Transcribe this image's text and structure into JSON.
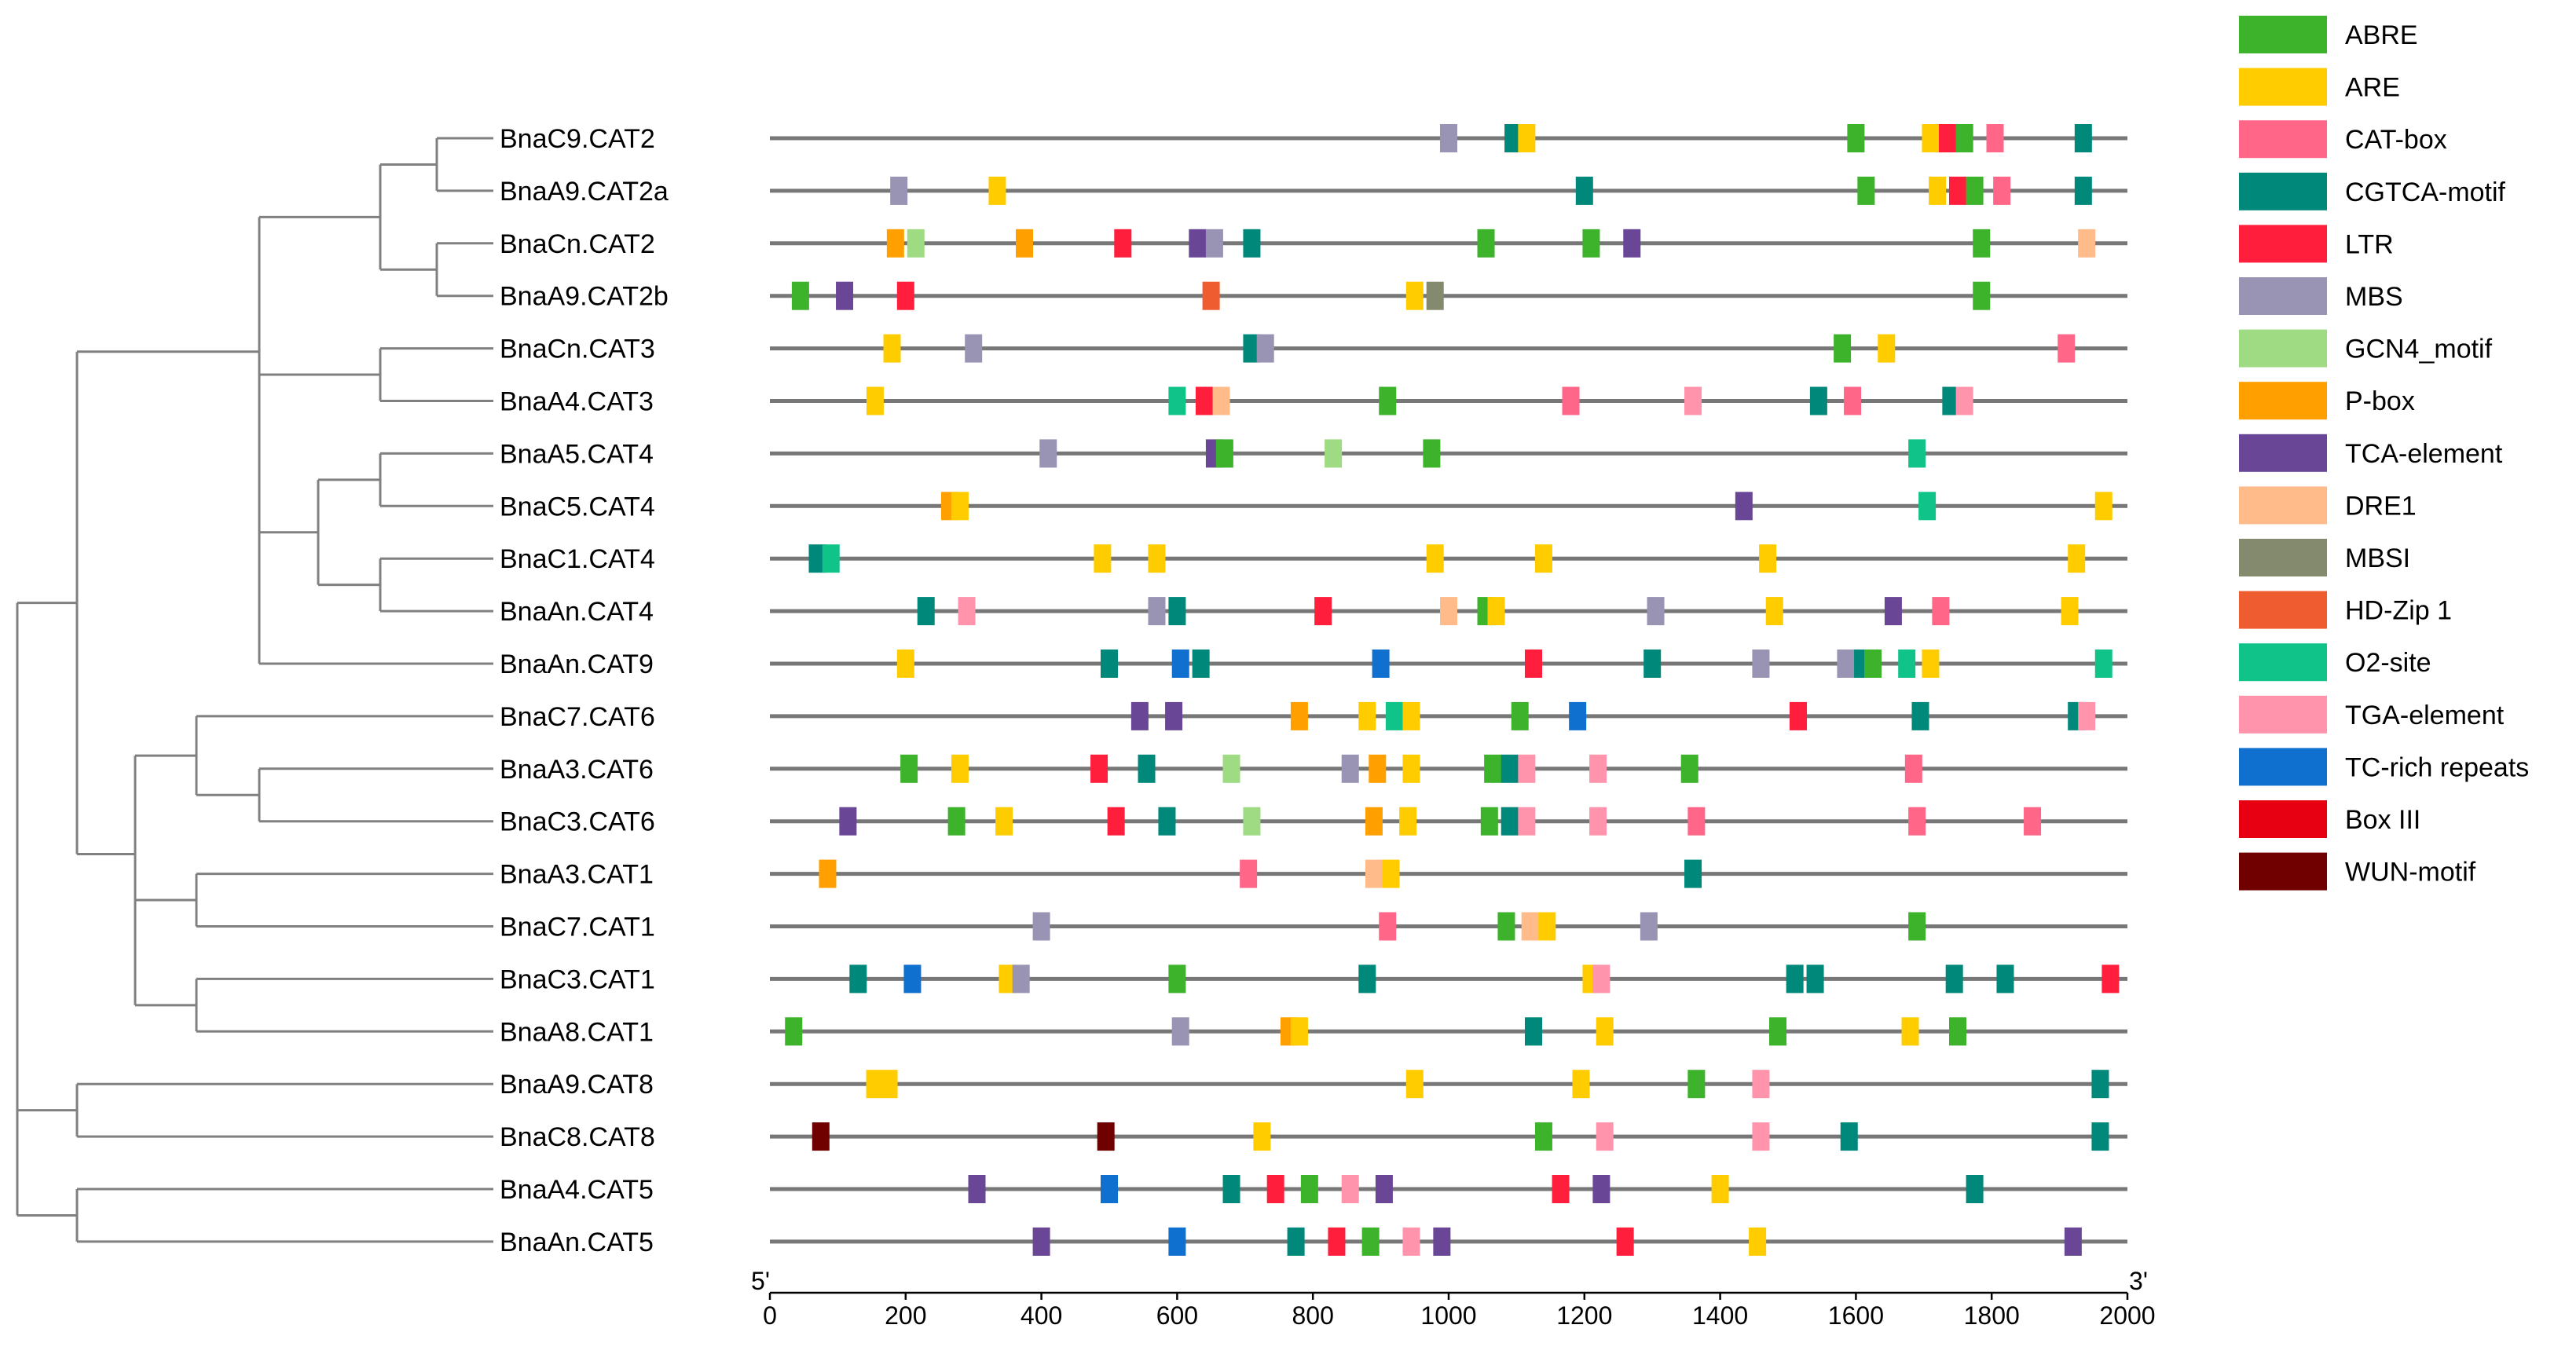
{
  "chart_data": {
    "type": "diagram",
    "description_kind": "promoter cis-element map with phylogenetic tree",
    "axis": {
      "min": 0,
      "max": 2000,
      "ticks": [
        0,
        200,
        400,
        600,
        800,
        1000,
        1200,
        1400,
        1600,
        1800,
        2000
      ],
      "left_end_label": "5'",
      "right_end_label": "3'"
    },
    "legend": [
      {
        "name": "ABRE",
        "color": "#3db22b"
      },
      {
        "name": "ARE",
        "color": "#ffcc00"
      },
      {
        "name": "CAT-box",
        "color": "#ff6688"
      },
      {
        "name": "CGTCA-motif",
        "color": "#00897b"
      },
      {
        "name": "LTR",
        "color": "#ff1f3d"
      },
      {
        "name": "MBS",
        "color": "#9a94b4"
      },
      {
        "name": "GCN4_motif",
        "color": "#9edb82"
      },
      {
        "name": "P-box",
        "color": "#ffa000"
      },
      {
        "name": "TCA-element",
        "color": "#6a4796"
      },
      {
        "name": "DRE1",
        "color": "#ffbb8a"
      },
      {
        "name": "MBSI",
        "color": "#848a6e"
      },
      {
        "name": "HD-Zip 1",
        "color": "#ef5c2f"
      },
      {
        "name": "O2-site",
        "color": "#10c389"
      },
      {
        "name": "TGA-element",
        "color": "#ff94ac"
      },
      {
        "name": "TC-rich repeats",
        "color": "#1070cf"
      },
      {
        "name": "Box III",
        "color": "#e60012"
      },
      {
        "name": "WUN-motif",
        "color": "#700000"
      }
    ],
    "genes": [
      {
        "name": "BnaC9.CAT2",
        "elements": [
          [
            1000,
            "MBS"
          ],
          [
            1095,
            "CGTCA-motif"
          ],
          [
            1115,
            "ARE"
          ],
          [
            1600,
            "ABRE"
          ],
          [
            1710,
            "ARE"
          ],
          [
            1735,
            "LTR"
          ],
          [
            1760,
            "ABRE"
          ],
          [
            1805,
            "CAT-box"
          ],
          [
            1935,
            "CGTCA-motif"
          ]
        ]
      },
      {
        "name": "BnaA9.CAT2a",
        "elements": [
          [
            190,
            "MBS"
          ],
          [
            335,
            "ARE"
          ],
          [
            1200,
            "CGTCA-motif"
          ],
          [
            1615,
            "ABRE"
          ],
          [
            1720,
            "ARE"
          ],
          [
            1750,
            "LTR"
          ],
          [
            1775,
            "ABRE"
          ],
          [
            1815,
            "CAT-box"
          ],
          [
            1935,
            "CGTCA-motif"
          ]
        ]
      },
      {
        "name": "BnaCn.CAT2",
        "elements": [
          [
            185,
            "P-box"
          ],
          [
            215,
            "GCN4_motif"
          ],
          [
            375,
            "P-box"
          ],
          [
            520,
            "LTR"
          ],
          [
            630,
            "TCA-element"
          ],
          [
            655,
            "MBS"
          ],
          [
            710,
            "CGTCA-motif"
          ],
          [
            1055,
            "ABRE"
          ],
          [
            1210,
            "ABRE"
          ],
          [
            1270,
            "TCA-element"
          ],
          [
            1785,
            "ABRE"
          ],
          [
            1940,
            "DRE1"
          ]
        ]
      },
      {
        "name": "BnaA9.CAT2b",
        "elements": [
          [
            45,
            "ABRE"
          ],
          [
            110,
            "TCA-element"
          ],
          [
            200,
            "LTR"
          ],
          [
            650,
            "HD-Zip 1"
          ],
          [
            950,
            "ARE"
          ],
          [
            980,
            "MBSI"
          ],
          [
            1785,
            "ABRE"
          ]
        ]
      },
      {
        "name": "BnaCn.CAT3",
        "elements": [
          [
            180,
            "ARE"
          ],
          [
            300,
            "MBS"
          ],
          [
            710,
            "CGTCA-motif"
          ],
          [
            730,
            "MBS"
          ],
          [
            1580,
            "ABRE"
          ],
          [
            1645,
            "ARE"
          ],
          [
            1910,
            "CAT-box"
          ]
        ]
      },
      {
        "name": "BnaA4.CAT3",
        "elements": [
          [
            155,
            "ARE"
          ],
          [
            600,
            "O2-site"
          ],
          [
            640,
            "LTR"
          ],
          [
            665,
            "DRE1"
          ],
          [
            910,
            "ABRE"
          ],
          [
            1180,
            "CAT-box"
          ],
          [
            1360,
            "TGA-element"
          ],
          [
            1545,
            "CGTCA-motif"
          ],
          [
            1595,
            "CAT-box"
          ],
          [
            1740,
            "CGTCA-motif"
          ],
          [
            1760,
            "TGA-element"
          ]
        ]
      },
      {
        "name": "BnaA5.CAT4",
        "elements": [
          [
            410,
            "MBS"
          ],
          [
            655,
            "TCA-element"
          ],
          [
            670,
            "ABRE"
          ],
          [
            830,
            "GCN4_motif"
          ],
          [
            975,
            "ABRE"
          ],
          [
            1690,
            "O2-site"
          ]
        ]
      },
      {
        "name": "BnaC5.CAT4",
        "elements": [
          [
            265,
            "P-box"
          ],
          [
            280,
            "ARE"
          ],
          [
            1435,
            "TCA-element"
          ],
          [
            1705,
            "O2-site"
          ],
          [
            1965,
            "ARE"
          ]
        ]
      },
      {
        "name": "BnaC1.CAT4",
        "elements": [
          [
            70,
            "CGTCA-motif"
          ],
          [
            90,
            "O2-site"
          ],
          [
            490,
            "ARE"
          ],
          [
            570,
            "ARE"
          ],
          [
            980,
            "ARE"
          ],
          [
            1140,
            "ARE"
          ],
          [
            1470,
            "ARE"
          ],
          [
            1925,
            "ARE"
          ]
        ]
      },
      {
        "name": "BnaAn.CAT4",
        "elements": [
          [
            230,
            "CGTCA-motif"
          ],
          [
            290,
            "TGA-element"
          ],
          [
            570,
            "MBS"
          ],
          [
            600,
            "CGTCA-motif"
          ],
          [
            815,
            "LTR"
          ],
          [
            1000,
            "DRE1"
          ],
          [
            1055,
            "ABRE"
          ],
          [
            1070,
            "ARE"
          ],
          [
            1305,
            "MBS"
          ],
          [
            1480,
            "ARE"
          ],
          [
            1655,
            "TCA-element"
          ],
          [
            1725,
            "CAT-box"
          ],
          [
            1915,
            "ARE"
          ]
        ]
      },
      {
        "name": "BnaAn.CAT9",
        "elements": [
          [
            200,
            "ARE"
          ],
          [
            500,
            "CGTCA-motif"
          ],
          [
            605,
            "TC-rich repeats"
          ],
          [
            635,
            "CGTCA-motif"
          ],
          [
            900,
            "TC-rich repeats"
          ],
          [
            1125,
            "LTR"
          ],
          [
            1300,
            "CGTCA-motif"
          ],
          [
            1460,
            "MBS"
          ],
          [
            1585,
            "MBS"
          ],
          [
            1610,
            "CGTCA-motif"
          ],
          [
            1625,
            "ABRE"
          ],
          [
            1675,
            "O2-site"
          ],
          [
            1710,
            "ARE"
          ],
          [
            1965,
            "O2-site"
          ]
        ]
      },
      {
        "name": "BnaC7.CAT6",
        "elements": [
          [
            545,
            "TCA-element"
          ],
          [
            595,
            "TCA-element"
          ],
          [
            780,
            "P-box"
          ],
          [
            880,
            "ARE"
          ],
          [
            920,
            "O2-site"
          ],
          [
            945,
            "ARE"
          ],
          [
            1105,
            "ABRE"
          ],
          [
            1190,
            "TC-rich repeats"
          ],
          [
            1515,
            "LTR"
          ],
          [
            1695,
            "CGTCA-motif"
          ],
          [
            1925,
            "CGTCA-motif"
          ],
          [
            1940,
            "TGA-element"
          ]
        ]
      },
      {
        "name": "BnaA3.CAT6",
        "elements": [
          [
            205,
            "ABRE"
          ],
          [
            280,
            "ARE"
          ],
          [
            485,
            "LTR"
          ],
          [
            555,
            "CGTCA-motif"
          ],
          [
            680,
            "GCN4_motif"
          ],
          [
            855,
            "MBS"
          ],
          [
            895,
            "P-box"
          ],
          [
            945,
            "ARE"
          ],
          [
            1065,
            "ABRE"
          ],
          [
            1090,
            "CGTCA-motif"
          ],
          [
            1115,
            "TGA-element"
          ],
          [
            1220,
            "TGA-element"
          ],
          [
            1355,
            "ABRE"
          ],
          [
            1685,
            "CAT-box"
          ]
        ]
      },
      {
        "name": "BnaC3.CAT6",
        "elements": [
          [
            115,
            "TCA-element"
          ],
          [
            275,
            "ABRE"
          ],
          [
            345,
            "ARE"
          ],
          [
            510,
            "LTR"
          ],
          [
            585,
            "CGTCA-motif"
          ],
          [
            710,
            "GCN4_motif"
          ],
          [
            890,
            "P-box"
          ],
          [
            940,
            "ARE"
          ],
          [
            1060,
            "ABRE"
          ],
          [
            1090,
            "CGTCA-motif"
          ],
          [
            1115,
            "TGA-element"
          ],
          [
            1220,
            "TGA-element"
          ],
          [
            1365,
            "CAT-box"
          ],
          [
            1690,
            "CAT-box"
          ],
          [
            1860,
            "CAT-box"
          ]
        ]
      },
      {
        "name": "BnaA3.CAT1",
        "elements": [
          [
            85,
            "P-box"
          ],
          [
            705,
            "CAT-box"
          ],
          [
            890,
            "DRE1"
          ],
          [
            915,
            "ARE"
          ],
          [
            1360,
            "CGTCA-motif"
          ]
        ]
      },
      {
        "name": "BnaC7.CAT1",
        "elements": [
          [
            400,
            "MBS"
          ],
          [
            910,
            "CAT-box"
          ],
          [
            1085,
            "ABRE"
          ],
          [
            1120,
            "DRE1"
          ],
          [
            1145,
            "ARE"
          ],
          [
            1295,
            "MBS"
          ],
          [
            1690,
            "ABRE"
          ]
        ]
      },
      {
        "name": "BnaC3.CAT1",
        "elements": [
          [
            130,
            "CGTCA-motif"
          ],
          [
            210,
            "TC-rich repeats"
          ],
          [
            350,
            "ARE"
          ],
          [
            370,
            "MBS"
          ],
          [
            600,
            "ABRE"
          ],
          [
            880,
            "CGTCA-motif"
          ],
          [
            1210,
            "ARE"
          ],
          [
            1225,
            "TGA-element"
          ],
          [
            1510,
            "CGTCA-motif"
          ],
          [
            1540,
            "CGTCA-motif"
          ],
          [
            1745,
            "CGTCA-motif"
          ],
          [
            1820,
            "CGTCA-motif"
          ],
          [
            1975,
            "LTR"
          ]
        ]
      },
      {
        "name": "BnaA8.CAT1",
        "elements": [
          [
            35,
            "ABRE"
          ],
          [
            605,
            "MBS"
          ],
          [
            765,
            "P-box"
          ],
          [
            780,
            "ARE"
          ],
          [
            1125,
            "CGTCA-motif"
          ],
          [
            1230,
            "ARE"
          ],
          [
            1485,
            "ABRE"
          ],
          [
            1680,
            "ARE"
          ],
          [
            1750,
            "ABRE"
          ]
        ]
      },
      {
        "name": "BnaA9.CAT8",
        "elements": [
          [
            165,
            "ARE"
          ],
          [
            950,
            "ARE"
          ],
          [
            1195,
            "ARE"
          ],
          [
            1365,
            "ABRE"
          ],
          [
            1460,
            "TGA-element"
          ],
          [
            1960,
            "CGTCA-motif"
          ]
        ]
      },
      {
        "name": "BnaC8.CAT8",
        "elements": [
          [
            75,
            "WUN-motif"
          ],
          [
            495,
            "WUN-motif"
          ],
          [
            725,
            "ARE"
          ],
          [
            1140,
            "ABRE"
          ],
          [
            1230,
            "TGA-element"
          ],
          [
            1460,
            "TGA-element"
          ],
          [
            1590,
            "CGTCA-motif"
          ],
          [
            1960,
            "CGTCA-motif"
          ]
        ]
      },
      {
        "name": "BnaA4.CAT5",
        "elements": [
          [
            305,
            "TCA-element"
          ],
          [
            500,
            "TC-rich repeats"
          ],
          [
            680,
            "CGTCA-motif"
          ],
          [
            745,
            "LTR"
          ],
          [
            795,
            "ABRE"
          ],
          [
            855,
            "TGA-element"
          ],
          [
            905,
            "TCA-element"
          ],
          [
            1165,
            "LTR"
          ],
          [
            1225,
            "TCA-element"
          ],
          [
            1400,
            "ARE"
          ],
          [
            1775,
            "CGTCA-motif"
          ]
        ]
      },
      {
        "name": "BnaAn.CAT5",
        "elements": [
          [
            400,
            "TCA-element"
          ],
          [
            600,
            "TC-rich repeats"
          ],
          [
            775,
            "CGTCA-motif"
          ],
          [
            835,
            "LTR"
          ],
          [
            885,
            "ABRE"
          ],
          [
            945,
            "TGA-element"
          ],
          [
            990,
            "TCA-element"
          ],
          [
            1260,
            "LTR"
          ],
          [
            1455,
            "ARE"
          ],
          [
            1920,
            "TCA-element"
          ]
        ]
      }
    ]
  }
}
